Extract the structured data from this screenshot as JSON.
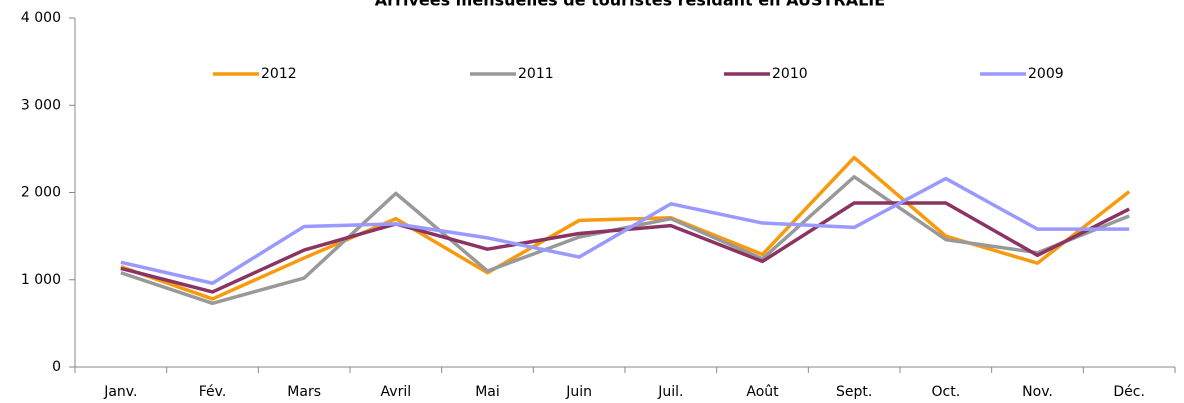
{
  "chart_data": {
    "type": "line",
    "title": "Arrivées mensuelles de touristes résidant en AUSTRALIE",
    "categories": [
      "Janv.",
      "Fév.",
      "Mars",
      "Avril",
      "Mai",
      "Juin",
      "Juil.",
      "Août",
      "Sept.",
      "Oct.",
      "Nov.",
      "Déc."
    ],
    "series": [
      {
        "name": "2012",
        "color": "#f79a0e",
        "values": [
          1150,
          780,
          1250,
          1700,
          1080,
          1680,
          1710,
          1290,
          2400,
          1500,
          1190,
          2010
        ]
      },
      {
        "name": "2011",
        "color": "#999999",
        "values": [
          1080,
          730,
          1020,
          1990,
          1100,
          1490,
          1700,
          1240,
          2180,
          1460,
          1310,
          1730
        ]
      },
      {
        "name": "2010",
        "color": "#8b3463",
        "values": [
          1130,
          860,
          1340,
          1640,
          1350,
          1530,
          1620,
          1210,
          1880,
          1880,
          1280,
          1810
        ]
      },
      {
        "name": "2009",
        "color": "#9999ff",
        "values": [
          1200,
          960,
          1610,
          1640,
          1480,
          1260,
          1870,
          1650,
          1600,
          2160,
          1580,
          1580
        ]
      }
    ],
    "ylim": [
      0,
      4000
    ],
    "yticks": [
      0,
      {
        "value": 1000,
        "label": "1 000"
      },
      {
        "value": 2000,
        "label": "2 000"
      },
      {
        "value": 3000,
        "label": "3 000"
      },
      {
        "value": 4000,
        "label": "4 000"
      }
    ],
    "legend": "top"
  }
}
